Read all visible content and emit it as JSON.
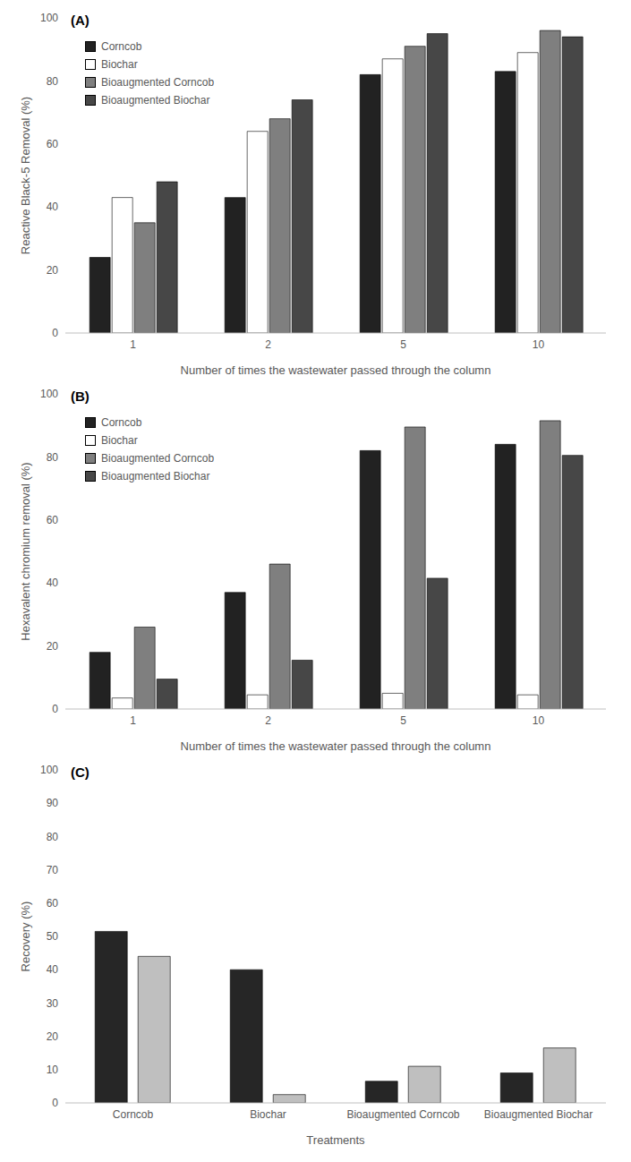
{
  "chart_data": [
    {
      "type": "bar",
      "title": "(A)",
      "x_label": "Number of times the wastewater passed through the column",
      "y_label": "Reactive Black-5 Removal (%)",
      "categories": [
        "1",
        "2",
        "5",
        "10"
      ],
      "series": [
        {
          "name": "Corncob",
          "color": "#222222",
          "values": [
            24,
            43,
            82,
            83
          ]
        },
        {
          "name": "Biochar",
          "color": "#ffffff",
          "values": [
            43,
            64,
            87,
            89
          ]
        },
        {
          "name": "Bioaugmented Corncob",
          "color": "#7f7f7f",
          "values": [
            35,
            68,
            91,
            96
          ]
        },
        {
          "name": "Bioaugmented Biochar",
          "color": "#474747",
          "values": [
            48,
            74,
            95,
            94
          ]
        }
      ],
      "ylim": [
        0,
        100
      ],
      "yticks": [
        0,
        20,
        40,
        60,
        80,
        100
      ],
      "grid": false,
      "legend": "upper left"
    },
    {
      "type": "bar",
      "title": "(B)",
      "x_label": "Number of times the wastewater passed through the column",
      "y_label": "Hexavalent chromium removal (%)",
      "categories": [
        "1",
        "2",
        "5",
        "10"
      ],
      "series": [
        {
          "name": "Corncob",
          "color": "#222222",
          "values": [
            18,
            37,
            82,
            84
          ]
        },
        {
          "name": "Biochar",
          "color": "#ffffff",
          "values": [
            3.5,
            4.5,
            5,
            4.5
          ]
        },
        {
          "name": "Bioaugmented Corncob",
          "color": "#7f7f7f",
          "values": [
            26,
            46,
            89.5,
            91.5
          ]
        },
        {
          "name": "Bioaugmented Biochar",
          "color": "#474747",
          "values": [
            9.5,
            15.5,
            41.5,
            80.5
          ]
        }
      ],
      "ylim": [
        0,
        100
      ],
      "yticks": [
        0,
        20,
        40,
        60,
        80,
        100
      ],
      "grid": false,
      "legend": "upper left"
    },
    {
      "type": "bar",
      "title": "(C)",
      "x_label": "Treatments",
      "y_label": "Recovery (%)",
      "categories": [
        "Corncob",
        "Biochar",
        "Bioaugmented Corncob",
        "Bioaugmented Biochar"
      ],
      "series": [
        {
          "color": "#262626",
          "values": [
            51.5,
            40,
            6.5,
            9
          ]
        },
        {
          "color": "#bfbfbf",
          "values": [
            44,
            2.5,
            11,
            16.5
          ]
        }
      ],
      "ylim": [
        0,
        100
      ],
      "yticks": [
        0,
        10,
        20,
        30,
        40,
        50,
        60,
        70,
        80,
        90,
        100
      ],
      "grid": false
    }
  ]
}
